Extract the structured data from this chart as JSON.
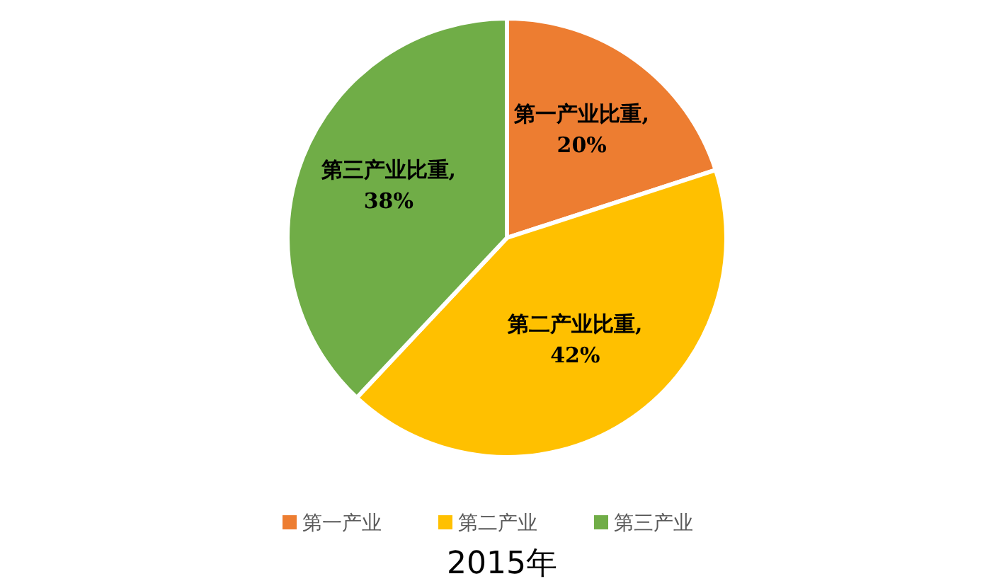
{
  "chart_data": {
    "type": "pie",
    "title": "2015年",
    "categories": [
      "第一产业",
      "第二产业",
      "第三产业"
    ],
    "values": [
      20,
      42,
      38
    ],
    "colors": [
      "#ed7d31",
      "#ffc000",
      "#70ad47"
    ],
    "value_labels": [
      "第一产业比重, 20%",
      "第二产业比重, 42%",
      "第三产业比重, 38%"
    ],
    "legend": "bottom"
  }
}
